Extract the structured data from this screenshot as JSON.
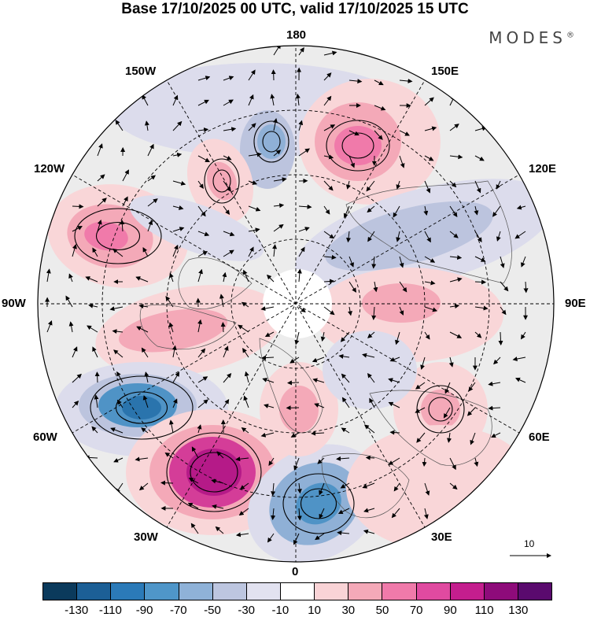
{
  "title": "Base 17/10/2025 00 UTC, valid 17/10/2025 15 UTC",
  "brand": "MODES",
  "brand_mark": "®",
  "longitude_labels": {
    "top": "180",
    "top_left": "150W",
    "top_right": "150E",
    "upper_left": "120W",
    "upper_right": "120E",
    "left": "90W",
    "right": "90E",
    "lower_left": "60W",
    "lower_right": "60E",
    "bottom_left": "30W",
    "bottom_right": "30E",
    "bottom": "0"
  },
  "vector_reference": {
    "label": "10"
  },
  "colorbar": {
    "colors": [
      "#0b3a5c",
      "#1c5f96",
      "#2b7ab8",
      "#4f96c9",
      "#8fb2d8",
      "#bdc6e0",
      "#e2e2f0",
      "#ffffff",
      "#f9d3d6",
      "#f4a9b8",
      "#f07aaa",
      "#e04aa0",
      "#c41e8e",
      "#8e0b7a",
      "#5a0a6e"
    ],
    "ticks": [
      "-130",
      "-110",
      "-90",
      "-70",
      "-50",
      "-30",
      "-10",
      "10",
      "30",
      "50",
      "70",
      "90",
      "110",
      "130"
    ]
  },
  "anomaly_colors": {
    "pos1": "#f9d6d8",
    "pos2": "#f4a9b8",
    "pos3": "#f07aaa",
    "pos4": "#d43d98",
    "pos5": "#b51a88",
    "neg1": "#dcdcec",
    "neg2": "#bcc4de",
    "neg3": "#8fb0d6",
    "neg4": "#4f93c6",
    "neg5": "#2a74ad",
    "background": "#ececec"
  }
}
